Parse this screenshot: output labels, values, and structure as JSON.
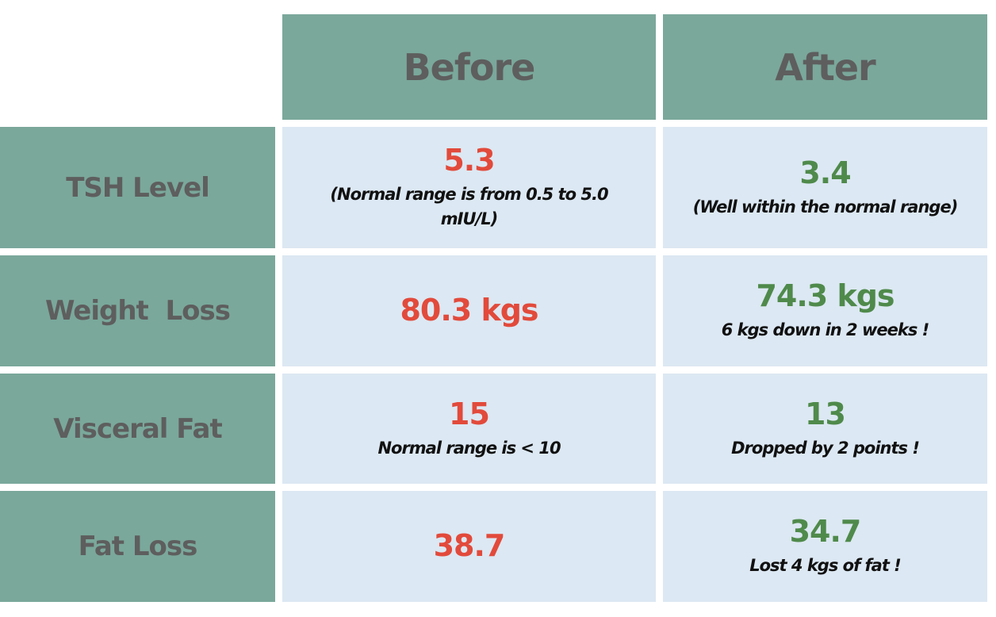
{
  "columns": {
    "before": "Before",
    "after": "After"
  },
  "rows": [
    {
      "label": "TSH Level",
      "before": {
        "value": "5.3",
        "note": "(Normal range is from 0.5 to 5.0 mIU/L)"
      },
      "after": {
        "value": "3.4",
        "note": "(Well within the normal range)"
      }
    },
    {
      "label": "Weight  Loss",
      "before": {
        "value": "80.3 kgs",
        "note": ""
      },
      "after": {
        "value": "74.3 kgs",
        "note": "6 kgs down in 2 weeks !"
      }
    },
    {
      "label": "Visceral Fat",
      "before": {
        "value": "15",
        "note": "Normal range is < 10"
      },
      "after": {
        "value": "13",
        "note": "Dropped by  2 points !"
      }
    },
    {
      "label": "Fat Loss",
      "before": {
        "value": "38.7",
        "note": ""
      },
      "after": {
        "value": "34.7",
        "note": "Lost 4 kgs of fat !"
      }
    }
  ],
  "colors": {
    "header_bg": "#7aa89b",
    "cell_bg": "#dce8f3",
    "before_value": "#e24a3b",
    "after_value": "#4f8a4b",
    "label_text": "#5e5e5e"
  }
}
